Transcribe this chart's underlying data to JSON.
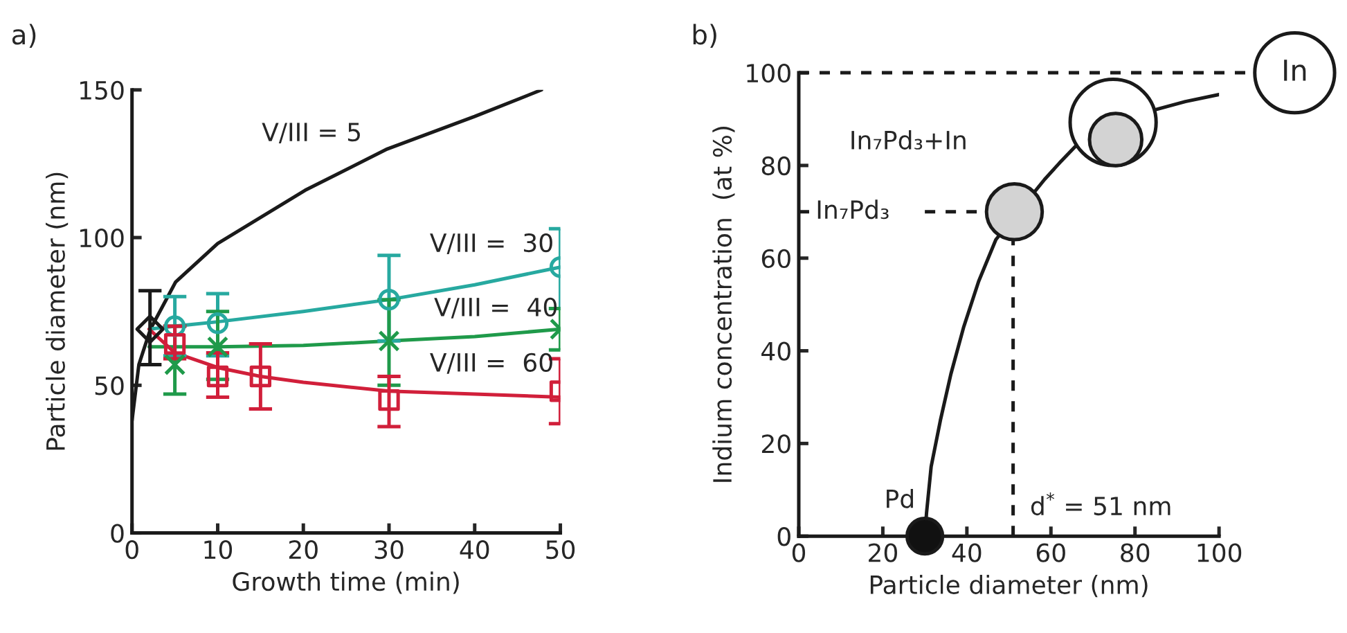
{
  "chart_data": [
    {
      "type": "line",
      "title": "a)",
      "xlabel": "Growth time (min)",
      "ylabel": "Particle diameter (nm)",
      "xlim": [
        0,
        50
      ],
      "xticks": [
        0,
        10,
        20,
        30,
        40,
        50
      ],
      "ylim": [
        0,
        150
      ],
      "yticks": [
        0,
        50,
        100,
        150
      ],
      "grid": false,
      "legend": false,
      "series": [
        {
          "type": "line",
          "color": "#1a1a1a",
          "x": [
            0,
            0.8,
            2.15,
            5.1,
            10,
            20.2,
            29.8,
            40,
            47.8
          ],
          "values": [
            38,
            57,
            69,
            85,
            98,
            116,
            130,
            141,
            150
          ]
        },
        {
          "type": "scatter",
          "marker": "diamond",
          "color": "#1a1a1a",
          "x": [
            2.1
          ],
          "values": [
            69
          ],
          "errors": [
            [
              57,
              82
            ]
          ]
        },
        {
          "type": "line",
          "color": "#27a9a0",
          "x": [
            2,
            5,
            10,
            20,
            30,
            40,
            50
          ],
          "values": [
            69,
            70,
            71.5,
            75,
            79,
            84,
            90
          ]
        },
        {
          "type": "scatter",
          "marker": "circle",
          "color": "#27a9a0",
          "x": [
            5,
            10,
            30,
            50
          ],
          "values": [
            70,
            71,
            79,
            90
          ],
          "errors": [
            [
              60,
              80
            ],
            [
              60,
              81
            ],
            [
              65,
              94
            ],
            [
              76,
              103
            ]
          ]
        },
        {
          "type": "line",
          "color": "#1f9a4a",
          "x": [
            2,
            10,
            20,
            30,
            40,
            50
          ],
          "values": [
            63,
            63,
            63.5,
            65,
            66.5,
            69
          ]
        },
        {
          "type": "scatter",
          "marker": "cross",
          "color": "#1f9a4a",
          "x": [
            5,
            10,
            30,
            50
          ],
          "values": [
            57,
            63,
            65,
            69
          ],
          "errors": [
            [
              47,
              70
            ],
            [
              52,
              75
            ],
            [
              50,
              79
            ],
            [
              62,
              76
            ]
          ]
        },
        {
          "type": "line",
          "color": "#d11f3a",
          "x": [
            2,
            5,
            10,
            15,
            20,
            30,
            40,
            50
          ],
          "values": [
            69,
            61,
            56,
            53,
            51,
            48,
            47,
            46
          ]
        },
        {
          "type": "scatter",
          "marker": "square",
          "color": "#d11f3a",
          "x": [
            5,
            10,
            15,
            30,
            50
          ],
          "values": [
            64,
            53,
            53,
            45,
            48
          ],
          "errors": [
            [
              59,
              70
            ],
            [
              46,
              61
            ],
            [
              42,
              64
            ],
            [
              36,
              53
            ],
            [
              37,
              59
            ]
          ]
        }
      ],
      "annotations": [
        "V/III = 5",
        "V/III =  30",
        "V/III =  40",
        "V/III =  60"
      ]
    },
    {
      "type": "line",
      "title": "b)",
      "xlabel": "Particle diameter (nm)",
      "ylabel": "Indium concentration  (at %)",
      "xlim": [
        0,
        100
      ],
      "xticks": [
        0,
        20,
        40,
        60,
        80,
        100
      ],
      "ylim": [
        0,
        100
      ],
      "yticks": [
        0,
        20,
        40,
        60,
        80,
        100
      ],
      "grid": false,
      "legend": false,
      "series": [
        {
          "type": "line",
          "color": "#1a1a1a",
          "x": [
            30,
            30.4,
            31.5,
            33.7,
            36.2,
            39.2,
            42.8,
            46.9,
            58.5,
            62,
            66,
            84.7,
            92,
            100
          ],
          "values": [
            0,
            5,
            15,
            25,
            35,
            45,
            55,
            64,
            77,
            80.5,
            84.3,
            92,
            93.8,
            95.3
          ]
        },
        {
          "type": "bubble",
          "x": [
            30,
            51.3,
            74.8,
            75.4
          ],
          "values": [
            0,
            70,
            89.3,
            85.6
          ],
          "sizes": [
            0.17,
            0.42,
            1,
            0.37
          ],
          "colors": [
            "#111111",
            "#d3d3d3",
            "#ffffff",
            "#d3d3d3"
          ]
        }
      ],
      "ref_lines": [
        {
          "axis": "y",
          "value": 100,
          "label": "In",
          "line_style": "dashed",
          "color": "#1a1a1a"
        },
        {
          "axis": "y",
          "value": 70,
          "label": "In₇Pd₃",
          "line_style": "dashed",
          "color": "#1a1a1a"
        },
        {
          "axis": "x",
          "value": 51,
          "label": "d$^{*}$ = 51 nm",
          "line_style": "dashed",
          "color": "#1a1a1a"
        }
      ],
      "annotations": [
        "In₇Pd₃+In",
        {
          "text": "Pd",
          "x": 30,
          "y": 0
        }
      ]
    }
  ]
}
